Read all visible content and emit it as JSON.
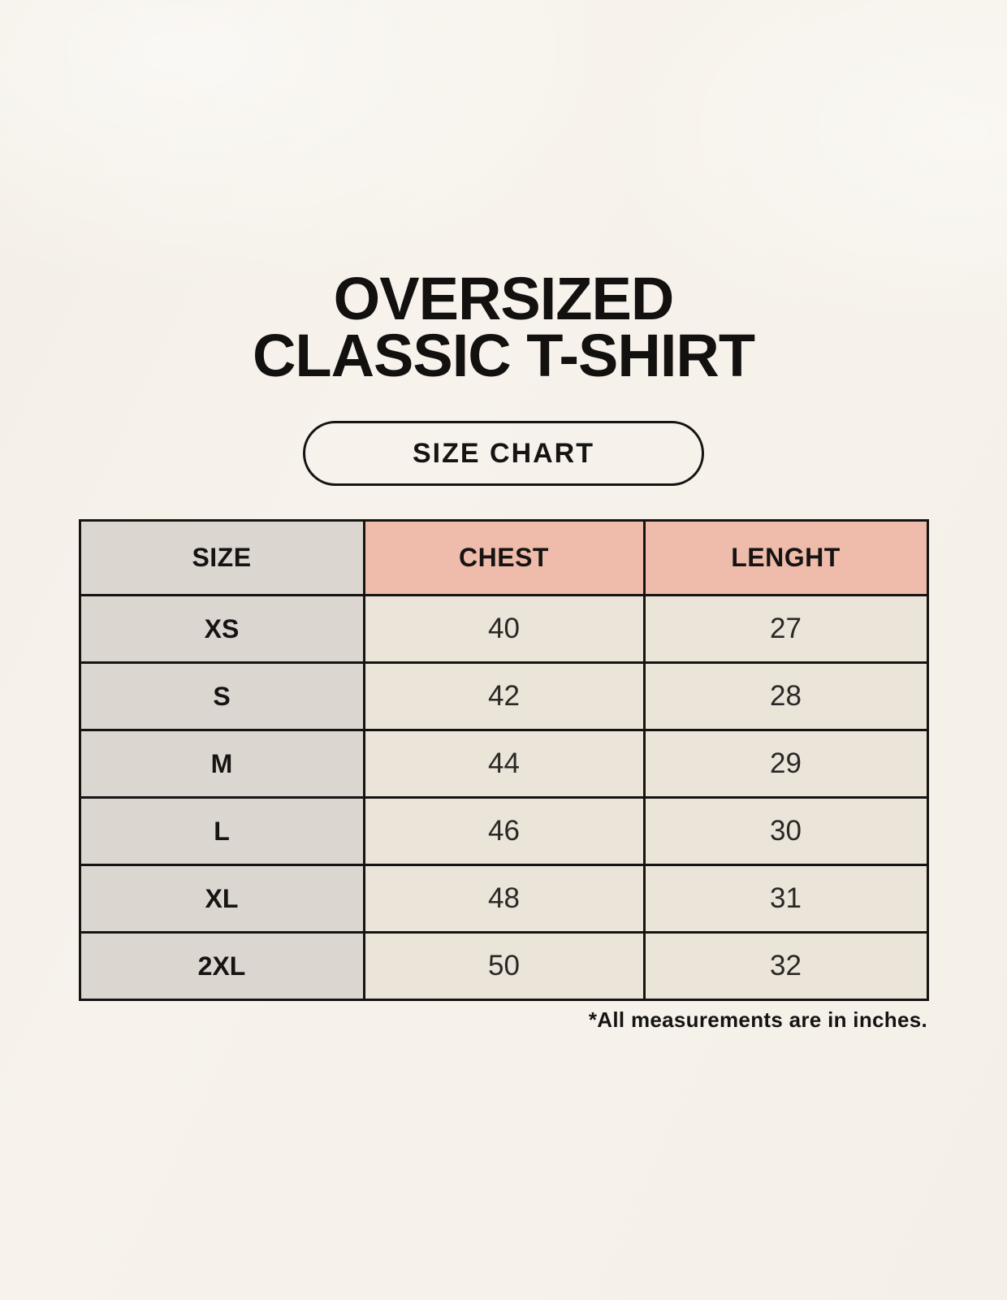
{
  "header": {
    "title_line1": "OVERSIZED",
    "title_line2": "CLASSIC T-SHIRT",
    "badge_label": "SIZE CHART"
  },
  "footnote": "*All measurements are in inches.",
  "colors": {
    "page_background": "#f7f3ec",
    "size_column_bg": "#dcd6d1",
    "measure_header_bg": "#efbcab",
    "value_cell_bg": "#eae4d9",
    "border": "#161413",
    "text": "#161413"
  },
  "chart_data": {
    "type": "table",
    "title": "OVERSIZED CLASSIC T-SHIRT — SIZE CHART",
    "columns": [
      "SIZE",
      "CHEST",
      "LENGHT"
    ],
    "rows": [
      [
        "XS",
        "40",
        "27"
      ],
      [
        "S",
        "42",
        "28"
      ],
      [
        "M",
        "44",
        "29"
      ],
      [
        "L",
        "46",
        "30"
      ],
      [
        "XL",
        "48",
        "31"
      ],
      [
        "2XL",
        "50",
        "32"
      ]
    ],
    "units": "inches",
    "note": "*All measurements are in inches."
  }
}
